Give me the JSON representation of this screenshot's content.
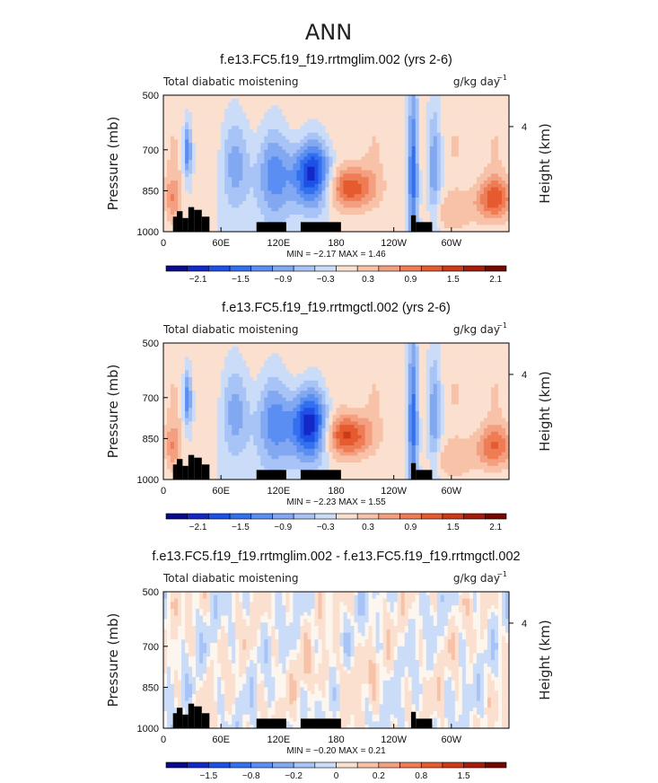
{
  "page_title": "ANN",
  "chart_data": [
    {
      "type": "heatmap",
      "title": "f.e13.FC5.f19_f19.rrtmglim.002 (yrs 2-6)",
      "left_label": "Total diabatic moistening",
      "units": "g/kg day",
      "units_exp": "−1",
      "ylabel": "Pressure (mb)",
      "ylabel_right": "Height (km)",
      "yticks": [
        "500",
        "700",
        "850",
        "1000"
      ],
      "yticks_right": [
        "4"
      ],
      "xticks": [
        "0",
        "60E",
        "120E",
        "180",
        "120W",
        "60W"
      ],
      "ylim": [
        1000,
        500
      ],
      "stats": "MIN =   −2.17   MAX =    1.46",
      "min": -2.17,
      "max": 1.46,
      "colorbar_ticks": [
        "−2.1",
        "−1.5",
        "−0.9",
        "−0.3",
        "0.3",
        "0.9",
        "1.5",
        "2.1"
      ],
      "colorbar_colors": [
        "#0a0a8c",
        "#1428c8",
        "#1e50e6",
        "#3270f0",
        "#5a8ef2",
        "#82a8f2",
        "#a8c4f6",
        "#cadcf8",
        "#fbe0d0",
        "#f8c2a8",
        "#f4a080",
        "#ee7c55",
        "#e65a30",
        "#cc3a18",
        "#a41c0c",
        "#760800"
      ],
      "blobs": [
        {
          "lon": 25,
          "p": 700,
          "v": -1.3,
          "slon": 3,
          "sp": 70
        },
        {
          "lon": 10,
          "p": 880,
          "v": 0.8,
          "slon": 6,
          "sp": 60
        },
        {
          "lon": 75,
          "p": 750,
          "v": -0.8,
          "slon": 12,
          "sp": 120
        },
        {
          "lon": 115,
          "p": 790,
          "v": -1.1,
          "slon": 14,
          "sp": 120
        },
        {
          "lon": 155,
          "p": 790,
          "v": -2.0,
          "slon": 15,
          "sp": 85
        },
        {
          "lon": 195,
          "p": 840,
          "v": 1.4,
          "slon": 18,
          "sp": 55
        },
        {
          "lon": 260,
          "p": 760,
          "v": -1.6,
          "slon": 4,
          "sp": 220
        },
        {
          "lon": 282,
          "p": 760,
          "v": -0.9,
          "slon": 5,
          "sp": 160
        },
        {
          "lon": 345,
          "p": 880,
          "v": 1.3,
          "slon": 14,
          "sp": 55
        },
        {
          "lon": 300,
          "p": 930,
          "v": 0.5,
          "slon": 18,
          "sp": 50
        }
      ],
      "bg": 0.2
    },
    {
      "type": "heatmap",
      "title": "f.e13.FC5.f19_f19.rrtmgctl.002 (yrs 2-6)",
      "left_label": "Total diabatic moistening",
      "units": "g/kg day",
      "units_exp": "−1",
      "ylabel": "Pressure (mb)",
      "ylabel_right": "Height (km)",
      "yticks": [
        "500",
        "700",
        "850",
        "1000"
      ],
      "yticks_right": [
        "4"
      ],
      "xticks": [
        "0",
        "60E",
        "120E",
        "180",
        "120W",
        "60W"
      ],
      "ylim": [
        1000,
        500
      ],
      "stats": "MIN =   −2.23   MAX =    1.55",
      "min": -2.23,
      "max": 1.55,
      "colorbar_ticks": [
        "−2.1",
        "−1.5",
        "−0.9",
        "−0.3",
        "0.3",
        "0.9",
        "1.5",
        "2.1"
      ],
      "colorbar_colors": [
        "#0a0a8c",
        "#1428c8",
        "#1e50e6",
        "#3270f0",
        "#5a8ef2",
        "#82a8f2",
        "#a8c4f6",
        "#cadcf8",
        "#fbe0d0",
        "#f8c2a8",
        "#f4a080",
        "#ee7c55",
        "#e65a30",
        "#cc3a18",
        "#a41c0c",
        "#760800"
      ],
      "blobs": [
        {
          "lon": 25,
          "p": 700,
          "v": -1.3,
          "slon": 3,
          "sp": 70
        },
        {
          "lon": 10,
          "p": 880,
          "v": 0.8,
          "slon": 6,
          "sp": 60
        },
        {
          "lon": 75,
          "p": 750,
          "v": -0.8,
          "slon": 12,
          "sp": 120
        },
        {
          "lon": 115,
          "p": 790,
          "v": -1.1,
          "slon": 14,
          "sp": 120
        },
        {
          "lon": 152,
          "p": 800,
          "v": -2.1,
          "slon": 14,
          "sp": 90
        },
        {
          "lon": 192,
          "p": 840,
          "v": 1.5,
          "slon": 17,
          "sp": 55
        },
        {
          "lon": 260,
          "p": 760,
          "v": -1.6,
          "slon": 4,
          "sp": 220
        },
        {
          "lon": 282,
          "p": 760,
          "v": -0.9,
          "slon": 5,
          "sp": 160
        },
        {
          "lon": 345,
          "p": 880,
          "v": 1.1,
          "slon": 14,
          "sp": 55
        },
        {
          "lon": 300,
          "p": 930,
          "v": 0.5,
          "slon": 18,
          "sp": 50
        }
      ],
      "bg": 0.2
    },
    {
      "type": "heatmap",
      "title": "f.e13.FC5.f19_f19.rrtmglim.002 - f.e13.FC5.f19_f19.rrtmgctl.002",
      "left_label": "Total diabatic moistening",
      "units": "g/kg day",
      "units_exp": "−1",
      "ylabel": "Pressure (mb)",
      "ylabel_right": "Height (km)",
      "yticks": [
        "500",
        "700",
        "850",
        "1000"
      ],
      "yticks_right": [
        "4"
      ],
      "xticks": [
        "0",
        "60E",
        "120E",
        "180",
        "120W",
        "60W"
      ],
      "ylim": [
        1000,
        500
      ],
      "stats": "MIN =   −0.20   MAX =    0.21",
      "min": -0.2,
      "max": 0.21,
      "colorbar_ticks": [
        "−1.5",
        "−0.8",
        "−0.2",
        "0",
        "0.2",
        "0.8",
        "1.5"
      ],
      "colorbar_colors": [
        "#0a0a8c",
        "#1428c8",
        "#1e50e6",
        "#3270f0",
        "#5a8ef2",
        "#82a8f2",
        "#a8c4f6",
        "#cadcf8",
        "#fbe0d0",
        "#f8c2a8",
        "#f4a080",
        "#ee7c55",
        "#e65a30",
        "#cc3a18",
        "#a41c0c",
        "#760800"
      ],
      "diff": true
    }
  ]
}
